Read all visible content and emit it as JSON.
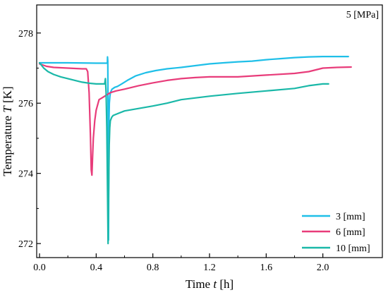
{
  "chart_data": {
    "type": "line",
    "annotation": "5 [MPa]",
    "xlabel": {
      "pre": "Time ",
      "var": "t",
      "post": " [h]"
    },
    "ylabel": {
      "pre": "Temperature ",
      "var": "T",
      "post": " [K]"
    },
    "xlim": [
      -0.02,
      2.42
    ],
    "ylim": [
      271.6,
      278.8
    ],
    "xticks": [
      0.0,
      0.4,
      0.8,
      1.2,
      1.6,
      2.0
    ],
    "xtick_labels": [
      "0.0",
      "0.4",
      "0.8",
      "1.2",
      "1.6",
      "2.0"
    ],
    "yticks": [
      272,
      274,
      276,
      278
    ],
    "ytick_labels": [
      "272",
      "274",
      "276",
      "278"
    ],
    "grid": false,
    "legend_position": "bottom-right",
    "series": [
      {
        "name": "3 [mm]",
        "color": "#1fbfe8",
        "x": [
          0.0,
          0.2,
          0.4,
          0.479,
          0.48,
          0.482,
          0.485,
          0.487,
          0.489,
          0.49,
          0.493,
          0.497,
          0.501,
          0.506,
          0.512,
          0.52,
          0.53,
          0.55,
          0.58,
          0.62,
          0.68,
          0.75,
          0.82,
          0.9,
          1.0,
          1.1,
          1.2,
          1.3,
          1.4,
          1.5,
          1.6,
          1.7,
          1.8,
          1.9,
          2.0,
          2.1,
          2.18
        ],
        "y": [
          277.15,
          277.15,
          277.14,
          277.14,
          277.32,
          277.2,
          275.0,
          272.1,
          273.8,
          275.4,
          276.0,
          276.2,
          276.3,
          276.35,
          276.4,
          276.42,
          276.45,
          276.48,
          276.55,
          276.65,
          276.78,
          276.87,
          276.93,
          276.98,
          277.02,
          277.07,
          277.12,
          277.15,
          277.18,
          277.2,
          277.24,
          277.27,
          277.3,
          277.32,
          277.33,
          277.33,
          277.33
        ]
      },
      {
        "name": "6 [mm]",
        "color": "#e83c7a",
        "x": [
          0.0,
          0.05,
          0.1,
          0.2,
          0.3,
          0.33,
          0.34,
          0.35,
          0.36,
          0.365,
          0.37,
          0.375,
          0.38,
          0.39,
          0.4,
          0.42,
          0.44,
          0.46,
          0.48,
          0.5,
          0.54,
          0.6,
          0.7,
          0.8,
          0.9,
          1.0,
          1.1,
          1.2,
          1.4,
          1.6,
          1.8,
          1.9,
          2.0,
          2.1,
          2.2
        ],
        "y": [
          277.12,
          277.05,
          277.02,
          277.0,
          276.98,
          276.98,
          276.9,
          276.3,
          275.0,
          274.1,
          273.95,
          274.5,
          275.0,
          275.5,
          275.8,
          276.1,
          276.15,
          276.2,
          276.25,
          276.3,
          276.35,
          276.4,
          276.5,
          276.58,
          276.65,
          276.7,
          276.73,
          276.75,
          276.75,
          276.8,
          276.85,
          276.9,
          277.0,
          277.02,
          277.03
        ]
      },
      {
        "name": "10 [mm]",
        "color": "#1ab8a8",
        "x": [
          0.0,
          0.03,
          0.06,
          0.1,
          0.15,
          0.2,
          0.25,
          0.3,
          0.35,
          0.4,
          0.45,
          0.46,
          0.465,
          0.47,
          0.475,
          0.48,
          0.484,
          0.488,
          0.492,
          0.496,
          0.5,
          0.51,
          0.52,
          0.55,
          0.6,
          0.7,
          0.8,
          0.9,
          1.0,
          1.2,
          1.4,
          1.6,
          1.8,
          1.9,
          2.0,
          2.04
        ],
        "y": [
          277.15,
          277.0,
          276.9,
          276.82,
          276.75,
          276.7,
          276.65,
          276.6,
          276.57,
          276.55,
          276.55,
          276.55,
          276.7,
          276.3,
          275.3,
          273.5,
          272.0,
          273.5,
          274.8,
          275.3,
          275.5,
          275.6,
          275.65,
          275.7,
          275.78,
          275.85,
          275.92,
          276.0,
          276.1,
          276.2,
          276.28,
          276.35,
          276.42,
          276.5,
          276.55,
          276.55
        ]
      }
    ]
  }
}
